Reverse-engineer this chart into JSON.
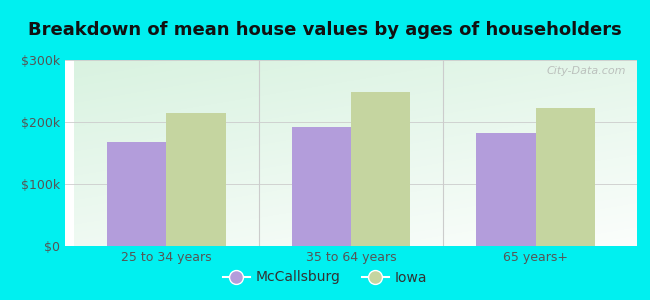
{
  "title": "Breakdown of mean house values by ages of householders",
  "categories": [
    "25 to 34 years",
    "35 to 64 years",
    "65 years+"
  ],
  "mccallsburg_values": [
    168000,
    192000,
    183000
  ],
  "iowa_values": [
    215000,
    248000,
    223000
  ],
  "bar_color_mccallsburg": "#b39ddb",
  "bar_color_iowa": "#c5d5a0",
  "ylim": [
    0,
    300000
  ],
  "yticks": [
    0,
    100000,
    200000,
    300000
  ],
  "legend_labels": [
    "McCallsburg",
    "Iowa"
  ],
  "background_outer": "#00f0f0",
  "title_fontsize": 13,
  "tick_fontsize": 9,
  "legend_fontsize": 10,
  "bar_width": 0.32,
  "watermark_text": "City-Data.com"
}
